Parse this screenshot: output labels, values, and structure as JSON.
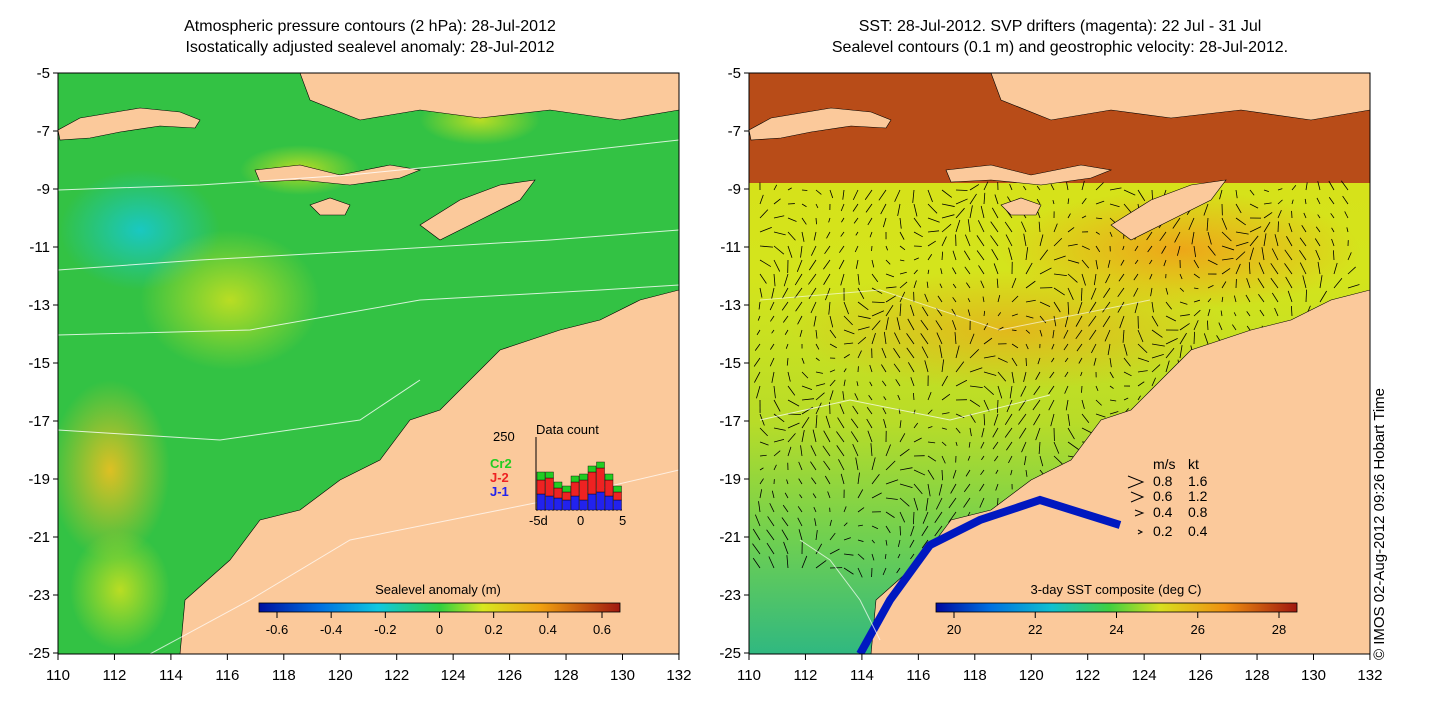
{
  "left_panel": {
    "title_line1": "Atmospheric pressure contours (2 hPa): 28-Jul-2012",
    "title_line2": "Isostatically adjusted sealevel anomaly: 28-Jul-2012",
    "colorbar_label": "Sealevel anomaly (m)",
    "colorbar_ticks": [
      "-0.6",
      "-0.4",
      "-0.2",
      "0",
      "0.2",
      "0.4",
      "0.6"
    ],
    "inset": {
      "title": "Data count",
      "ymax_label": "250",
      "legend": [
        {
          "label": "Cr2",
          "color": "#22cc22"
        },
        {
          "label": "J-2",
          "color": "#ee2222"
        },
        {
          "label": "J-1",
          "color": "#2222ee"
        }
      ],
      "xticks": [
        "-5d",
        "0",
        "5"
      ]
    }
  },
  "right_panel": {
    "title_line1": "SST: 28-Jul-2012. SVP drifters (magenta): 22 Jul - 31 Jul",
    "title_line2": "Sealevel contours (0.1 m) and geostrophic velocity: 28-Jul-2012.",
    "colorbar_label": "3-day SST composite (deg C)",
    "colorbar_ticks": [
      "20",
      "22",
      "24",
      "26",
      "28"
    ],
    "speed_legend": {
      "header_ms": "m/s",
      "header_kt": "kt",
      "rows": [
        {
          "ms": "0.8",
          "kt": "1.6"
        },
        {
          "ms": "0.6",
          "kt": "1.2"
        },
        {
          "ms": "0.4",
          "kt": "0.8"
        },
        {
          "ms": "0.2",
          "kt": "0.4"
        }
      ]
    }
  },
  "axes": {
    "y_ticks": [
      "-5",
      "-7",
      "-9",
      "-11",
      "-13",
      "-15",
      "-17",
      "-19",
      "-21",
      "-23",
      "-25"
    ],
    "x_ticks": [
      "110",
      "112",
      "114",
      "116",
      "118",
      "120",
      "122",
      "124",
      "126",
      "128",
      "130",
      "132"
    ]
  },
  "credit": "© IMOS 02-Aug-2012 09:26 Hobart Time",
  "colors": {
    "land": "#fbc99b",
    "sla_ocean": "#33c244",
    "sst_ocean": "#d4e21c",
    "sst_north": "#b84c18"
  }
}
